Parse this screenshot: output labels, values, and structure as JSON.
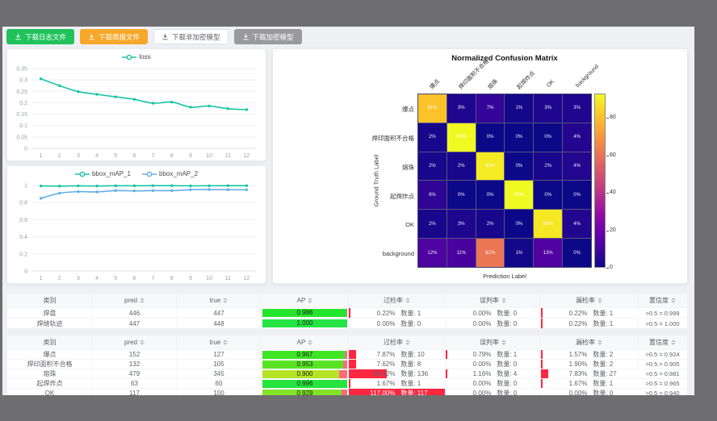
{
  "toolbar": {
    "buttons": [
      {
        "label": "下载日志文件",
        "variant": "green",
        "color": "#22c25b"
      },
      {
        "label": "下载简报文件",
        "variant": "orange",
        "color": "#f7a82a"
      },
      {
        "label": "下载非加密模型",
        "variant": "plain",
        "color": "#ffffff"
      },
      {
        "label": "下载加密模型",
        "variant": "gray",
        "color": "#9a9a9e"
      }
    ]
  },
  "chart_data": [
    {
      "type": "line",
      "title": "",
      "legend_position": "top",
      "x": [
        1,
        2,
        3,
        4,
        5,
        6,
        7,
        8,
        9,
        10,
        11,
        12
      ],
      "series": [
        {
          "name": "loss",
          "color": "#18c5a5",
          "values": [
            0.305,
            0.275,
            0.249,
            0.237,
            0.226,
            0.215,
            0.198,
            0.203,
            0.181,
            0.186,
            0.174,
            0.17
          ]
        }
      ],
      "ylim": [
        0,
        0.35
      ],
      "yticks": [
        0,
        0.05,
        0.1,
        0.15,
        0.2,
        0.25,
        0.3,
        0.35
      ],
      "grid": true
    },
    {
      "type": "line",
      "title": "",
      "legend_position": "top",
      "x": [
        1,
        2,
        3,
        4,
        5,
        6,
        7,
        8,
        9,
        10,
        11,
        12
      ],
      "series": [
        {
          "name": "bbox_mAP_1",
          "color": "#18c5a5",
          "values": [
            0.995,
            0.993,
            0.996,
            0.994,
            0.997,
            0.997,
            0.998,
            0.998,
            0.996,
            0.997,
            0.998,
            0.998
          ]
        },
        {
          "name": "bbox_mAP_2",
          "color": "#63aee6",
          "values": [
            0.85,
            0.91,
            0.928,
            0.925,
            0.94,
            0.937,
            0.94,
            0.94,
            0.951,
            0.953,
            0.951,
            0.95
          ]
        }
      ],
      "ylim": [
        0,
        1
      ],
      "yticks": [
        0,
        0.2,
        0.4,
        0.6,
        0.8,
        1
      ],
      "grid": true
    },
    {
      "type": "heatmap",
      "title": "Normalized Confusion Matrix",
      "xlabel": "Prediction Label",
      "ylabel": "Ground Truth Label",
      "categories": [
        "爆点",
        "焊印面积不合格",
        "熔珠",
        "起焊炸点",
        "OK",
        "background"
      ],
      "matrix_percent": [
        [
          81,
          3,
          7,
          1,
          3,
          3
        ],
        [
          2,
          93,
          0,
          0,
          0,
          4
        ],
        [
          2,
          2,
          90,
          0,
          2,
          4
        ],
        [
          6,
          0,
          0,
          93,
          0,
          0
        ],
        [
          2,
          3,
          2,
          0,
          89,
          4
        ],
        [
          12,
          11,
          61,
          1,
          13,
          0
        ]
      ],
      "colormap": "plasma",
      "vmax": 93,
      "colorbar_ticks": [
        0,
        20,
        40,
        60,
        80
      ],
      "legend_position": "right-colorbar"
    }
  ],
  "tables": [
    {
      "headers": [
        {
          "label": "类别",
          "sortable": false
        },
        {
          "label": "pred",
          "sortable": true
        },
        {
          "label": "true",
          "sortable": true
        },
        {
          "label": "AP",
          "sortable": true
        },
        {
          "label": "过检率",
          "sortable": true
        },
        {
          "label": "误判率",
          "sortable": true
        },
        {
          "label": "漏检率",
          "sortable": true
        },
        {
          "label": "置信度",
          "sortable": true
        }
      ],
      "rows": [
        {
          "label": "焊盘",
          "pred": "446",
          "true": "447",
          "ap": "0.986",
          "ap_value": 0.986,
          "rates": [
            {
              "pct": "0.22%",
              "value": 0.22,
              "count": "数量: 1"
            },
            {
              "pct": "0.00%",
              "value": 0,
              "count": "数量: 0"
            },
            {
              "pct": "0.22%",
              "value": 0.22,
              "count": "数量: 1"
            }
          ],
          "confidence": ">0.5 = 0.999"
        },
        {
          "label": "焊缝轨迹",
          "pred": "447",
          "true": "448",
          "ap": "1.000",
          "ap_value": 1.0,
          "rates": [
            {
              "pct": "0.00%",
              "value": 0,
              "count": "数量: 0"
            },
            {
              "pct": "0.00%",
              "value": 0,
              "count": "数量: 0"
            },
            {
              "pct": "0.22%",
              "value": 0.22,
              "count": "数量: 1"
            }
          ],
          "confidence": ">0.5 = 1.000"
        }
      ]
    },
    {
      "headers": [
        {
          "label": "类别",
          "sortable": false
        },
        {
          "label": "pred",
          "sortable": true
        },
        {
          "label": "true",
          "sortable": true
        },
        {
          "label": "AP",
          "sortable": true
        },
        {
          "label": "过检率",
          "sortable": true
        },
        {
          "label": "误判率",
          "sortable": true
        },
        {
          "label": "漏检率",
          "sortable": true
        },
        {
          "label": "置信度",
          "sortable": true
        }
      ],
      "rows": [
        {
          "label": "爆点",
          "pred": "152",
          "true": "127",
          "ap": "0.967",
          "ap_value": 0.967,
          "rates": [
            {
              "pct": "7.87%",
              "value": 7.87,
              "count": "数量: 10"
            },
            {
              "pct": "0.79%",
              "value": 0.79,
              "count": "数量: 1"
            },
            {
              "pct": "1.57%",
              "value": 1.57,
              "count": "数量: 2"
            }
          ],
          "confidence": ">0.5 = 0.924"
        },
        {
          "label": "焊印面积不合格",
          "pred": "132",
          "true": "105",
          "ap": "0.953",
          "ap_value": 0.953,
          "rates": [
            {
              "pct": "7.62%",
              "value": 7.62,
              "count": "数量: 8"
            },
            {
              "pct": "0.00%",
              "value": 0,
              "count": "数量: 0"
            },
            {
              "pct": "1.90%",
              "value": 1.9,
              "count": "数量: 2"
            }
          ],
          "confidence": ">0.5 = 0.905"
        },
        {
          "label": "熔珠",
          "pred": "479",
          "true": "345",
          "ap": "0.900",
          "ap_value": 0.9,
          "rates": [
            {
              "pct": "39.42%",
              "value": 39.42,
              "count": "数量: 136"
            },
            {
              "pct": "1.16%",
              "value": 1.16,
              "count": "数量: 4"
            },
            {
              "pct": "7.83%",
              "value": 7.83,
              "count": "数量: 27"
            }
          ],
          "confidence": ">0.5 = 0.881"
        },
        {
          "label": "起焊炸点",
          "pred": "63",
          "true": "60",
          "ap": "0.996",
          "ap_value": 0.996,
          "rates": [
            {
              "pct": "1.67%",
              "value": 1.67,
              "count": "数量: 1"
            },
            {
              "pct": "0.00%",
              "value": 0,
              "count": "数量: 0"
            },
            {
              "pct": "1.67%",
              "value": 1.67,
              "count": "数量: 1"
            }
          ],
          "confidence": ">0.5 = 0.965"
        },
        {
          "label": "OK",
          "pred": "117",
          "true": "100",
          "ap": "0.929",
          "ap_value": 0.929,
          "rates": [
            {
              "pct": "117.00%",
              "value": 117,
              "count": "数量: 117"
            },
            {
              "pct": "0.00%",
              "value": 0,
              "count": "数量: 0"
            },
            {
              "pct": "0.00%",
              "value": 0,
              "count": "数量: 0"
            }
          ],
          "confidence": ">0.5 = 0.940"
        }
      ]
    }
  ],
  "colors": {
    "rate_bar": "#ff2740",
    "ap_remainder": "#ff6b78",
    "backdrop": "#6e6e71",
    "content_bg": "#eef0f4"
  }
}
